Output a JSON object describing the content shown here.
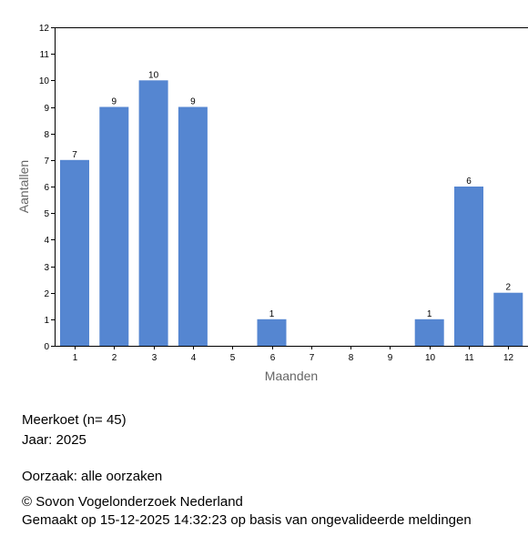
{
  "chart_data": {
    "type": "bar",
    "categories": [
      "1",
      "2",
      "3",
      "4",
      "5",
      "6",
      "7",
      "8",
      "9",
      "10",
      "11",
      "12"
    ],
    "series": [
      {
        "values": [
          7,
          9,
          10,
          9,
          0,
          1,
          0,
          0,
          0,
          1,
          6,
          2
        ]
      }
    ],
    "data_labels": [
      "7",
      "9",
      "10",
      "9",
      "",
      "1",
      "",
      "",
      "",
      "1",
      "6",
      "2"
    ],
    "xlabel": "Maanden",
    "ylabel": "Aantallen",
    "ylim": [
      0,
      12
    ],
    "yticks": [
      0,
      1,
      2,
      3,
      4,
      5,
      6,
      7,
      8,
      9,
      10,
      11,
      12
    ],
    "grid": false,
    "bar_color": "#5586d1"
  },
  "info": {
    "species": "Meerkoet  (n= 45)",
    "year": "Jaar: 2025",
    "cause": "Oorzaak: alle oorzaken",
    "copyright": "© Sovon Vogelonderzoek Nederland",
    "generated": "Gemaakt op 15-12-2025 14:32:23 op basis van ongevalideerde meldingen"
  }
}
